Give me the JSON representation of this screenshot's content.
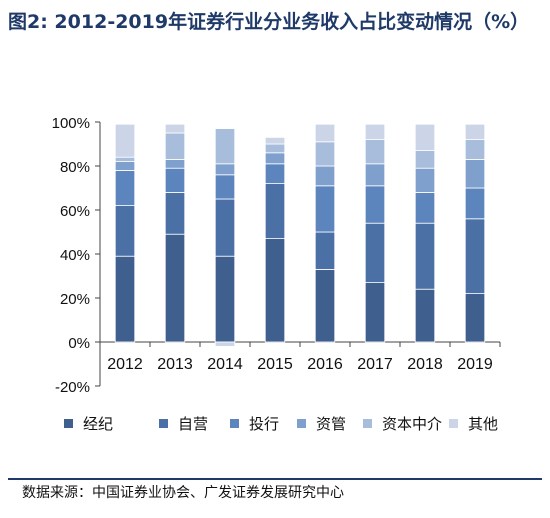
{
  "header": {
    "title": "图2: 2012-2019年证券行业分业务收入占比变动情况（%）"
  },
  "chart_data": {
    "type": "bar",
    "stacked": true,
    "categories": [
      "2012",
      "2013",
      "2014",
      "2015",
      "2016",
      "2017",
      "2018",
      "2019"
    ],
    "ylim": [
      -20,
      100
    ],
    "yticks": [
      "-20%",
      "0%",
      "20%",
      "40%",
      "60%",
      "80%",
      "100%"
    ],
    "ytick_values": [
      -20,
      0,
      20,
      40,
      60,
      80,
      100
    ],
    "legend_position": "bottom",
    "grid": false,
    "series": [
      {
        "name": "经纪",
        "color": "#3f5f8f",
        "values": [
          39,
          49,
          39,
          47,
          33,
          27,
          24,
          22
        ]
      },
      {
        "name": "自营",
        "color": "#4a70a6",
        "values": [
          23,
          19,
          26,
          25,
          17,
          27,
          30,
          34
        ]
      },
      {
        "name": "投行",
        "color": "#5c84bd",
        "values": [
          16,
          11,
          11,
          9,
          21,
          17,
          14,
          14
        ]
      },
      {
        "name": "资管",
        "color": "#7f9fcd",
        "values": [
          4,
          4,
          5,
          5,
          9,
          10,
          11,
          13
        ]
      },
      {
        "name": "资本中介",
        "color": "#a8bcdc",
        "values": [
          2,
          12,
          16,
          4,
          11,
          11,
          8,
          9
        ]
      },
      {
        "name": "其他",
        "color": "#cbd5e7",
        "values": [
          15,
          4,
          -2,
          3,
          8,
          7,
          12,
          7
        ]
      }
    ]
  },
  "footer": {
    "source": "数据来源：中国证券业协会、广发证券发展研究中心"
  }
}
